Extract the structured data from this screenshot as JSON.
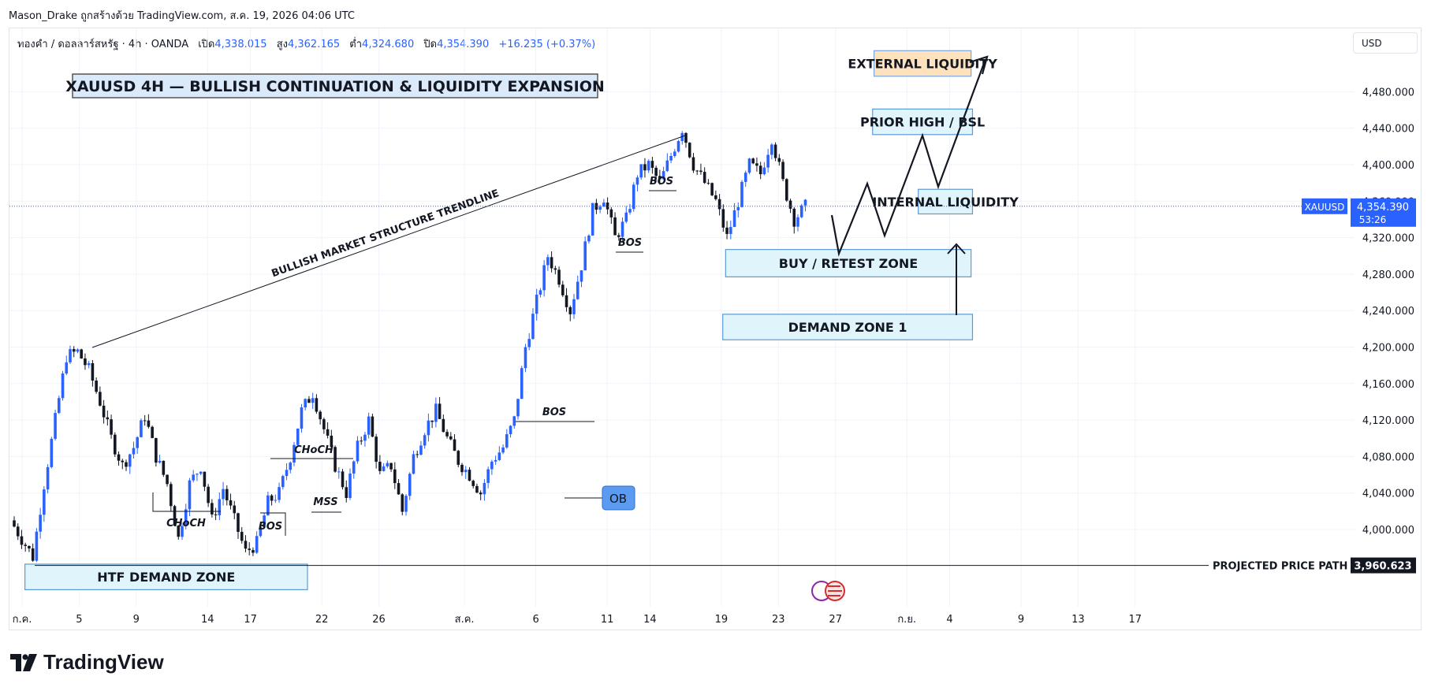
{
  "header": {
    "attribution": "Mason_Drake ถูกสร้างด้วย TradingView.com, ส.ค. 19, 2026 04:06 UTC",
    "symbol_desc": "ทองคำ / ดอลลาร์สหรัฐ · 4h · OANDA",
    "open_label": "เปิด",
    "open": "4,338.015",
    "high_label": "สูง",
    "high": "4,362.165",
    "low_label": "ต่ำ",
    "low": "4,324.680",
    "close_label": "ปิด",
    "close": "4,354.390",
    "change": "+16.235 (+0.37%)",
    "currency": "USD"
  },
  "branding": {
    "logo_text": "TradingView"
  },
  "colors": {
    "up": "#2962ff",
    "down": "#131722",
    "zone_fill": "#e0f5fb",
    "zone_border": "#5b9bd5",
    "external_fill": "#fde2bd",
    "ob_fill": "#5b9bf0",
    "price_tag": "#2962ff",
    "grid": "#f0f3fa"
  },
  "chart_data": {
    "type": "candlestick",
    "title": "XAUUSD 4H — BULLISH CONTINUATION & LIQUIDITY EXPANSION",
    "symbol": "XAUUSD",
    "timeframe": "4h",
    "ylim": [
      3945,
      4530
    ],
    "y_ticks": [
      "4,000.000",
      "4,040.000",
      "4,080.000",
      "4,120.000",
      "4,160.000",
      "4,200.000",
      "4,240.000",
      "4,280.000",
      "4,320.000",
      "4,360.000",
      "4,400.000",
      "4,440.000",
      "4,480.000"
    ],
    "x_tick_labels": [
      {
        "label": "ก.ค.",
        "day": 1
      },
      {
        "label": "5",
        "day": 5
      },
      {
        "label": "9",
        "day": 9
      },
      {
        "label": "14",
        "day": 14
      },
      {
        "label": "17",
        "day": 17
      },
      {
        "label": "22",
        "day": 22
      },
      {
        "label": "26",
        "day": 26
      },
      {
        "label": "ส.ค.",
        "day": 32
      },
      {
        "label": "6",
        "day": 37
      },
      {
        "label": "11",
        "day": 42
      },
      {
        "label": "14",
        "day": 45
      },
      {
        "label": "19",
        "day": 50
      },
      {
        "label": "23",
        "day": 54
      },
      {
        "label": "27",
        "day": 58
      },
      {
        "label": "ก.ย.",
        "day": 63
      },
      {
        "label": "4",
        "day": 66
      },
      {
        "label": "9",
        "day": 71
      },
      {
        "label": "13",
        "day": 75
      },
      {
        "label": "17",
        "day": 79
      }
    ],
    "last_price": {
      "symbol": "XAUUSD",
      "value": 4354.39,
      "label": "4,354.390",
      "countdown": "53:26"
    },
    "projected_price": {
      "label": "PROJECTED PRICE PATH",
      "value": 3960.623,
      "value_label": "3,960.623"
    },
    "price_waypoints": [
      [
        0,
        4010
      ],
      [
        2,
        3970
      ],
      [
        3,
        4050
      ],
      [
        4,
        4120
      ],
      [
        5,
        4190
      ],
      [
        6,
        4195
      ],
      [
        7,
        4175
      ],
      [
        8,
        4140
      ],
      [
        9,
        4100
      ],
      [
        10,
        4070
      ],
      [
        11,
        4090
      ],
      [
        12,
        4125
      ],
      [
        13,
        4080
      ],
      [
        14,
        4050
      ],
      [
        15,
        3990
      ],
      [
        16,
        4050
      ],
      [
        17,
        4070
      ],
      [
        18,
        4010
      ],
      [
        19,
        4045
      ],
      [
        20,
        4010
      ],
      [
        21,
        3975
      ],
      [
        22,
        3985
      ],
      [
        23,
        4030
      ],
      [
        24,
        4040
      ],
      [
        25,
        4080
      ],
      [
        26,
        4130
      ],
      [
        27,
        4150
      ],
      [
        28,
        4110
      ],
      [
        29,
        4070
      ],
      [
        30,
        4040
      ],
      [
        31,
        4090
      ],
      [
        32,
        4120
      ],
      [
        33,
        4060
      ],
      [
        34,
        4070
      ],
      [
        35,
        4020
      ],
      [
        36,
        4080
      ],
      [
        37,
        4110
      ],
      [
        38,
        4130
      ],
      [
        39,
        4100
      ],
      [
        40,
        4075
      ],
      [
        41,
        4060
      ],
      [
        42,
        4040
      ],
      [
        43,
        4075
      ],
      [
        44,
        4090
      ],
      [
        45,
        4120
      ],
      [
        46,
        4200
      ],
      [
        47,
        4250
      ],
      [
        48,
        4300
      ],
      [
        49,
        4275
      ],
      [
        50,
        4240
      ],
      [
        51,
        4290
      ],
      [
        52,
        4350
      ],
      [
        53,
        4365
      ],
      [
        54,
        4320
      ],
      [
        55,
        4340
      ],
      [
        56,
        4390
      ],
      [
        57,
        4400
      ],
      [
        58,
        4380
      ],
      [
        59,
        4410
      ],
      [
        60,
        4440
      ],
      [
        61,
        4400
      ],
      [
        62,
        4380
      ],
      [
        63,
        4360
      ],
      [
        64,
        4320
      ],
      [
        65,
        4360
      ],
      [
        66,
        4400
      ],
      [
        67,
        4390
      ],
      [
        68,
        4430
      ],
      [
        69,
        4380
      ],
      [
        70,
        4340
      ],
      [
        71,
        4354
      ]
    ],
    "zones": [
      {
        "label": "EXTERNAL LIQUIDITY",
        "x_from": 60.7,
        "x_to": 67.5,
        "y_low": 4497,
        "y_high": 4525,
        "style": "external"
      },
      {
        "label": "PRIOR HIGH / BSL",
        "x_from": 60.6,
        "x_to": 67.6,
        "y_low": 4433,
        "y_high": 4461,
        "style": "zone"
      },
      {
        "label": "INTERNAL LIQUIDITY",
        "x_from": 63.8,
        "x_to": 67.6,
        "y_low": 4346,
        "y_high": 4373,
        "style": "zone"
      },
      {
        "label": "BUY / RETEST ZONE",
        "x_from": 50.3,
        "x_to": 67.5,
        "y_low": 4277,
        "y_high": 4307,
        "style": "zone"
      },
      {
        "label": "DEMAND ZONE 1",
        "x_from": 50.1,
        "x_to": 67.6,
        "y_low": 4208,
        "y_high": 4236,
        "style": "zone"
      },
      {
        "label": "HTF DEMAND ZONE",
        "x_from": 1.2,
        "x_to": 21,
        "y_low": 3934,
        "y_high": 3962,
        "style": "zone"
      }
    ],
    "annotations": [
      {
        "label": "BULLISH MARKET STRUCTURE TRENDLINE"
      },
      {
        "label": "BOS"
      },
      {
        "label": "BOS"
      },
      {
        "label": "BOS"
      },
      {
        "label": "BOS"
      },
      {
        "label": "CHoCH"
      },
      {
        "label": "CHoCH"
      },
      {
        "label": "MSS"
      },
      {
        "label": "OB"
      }
    ]
  }
}
